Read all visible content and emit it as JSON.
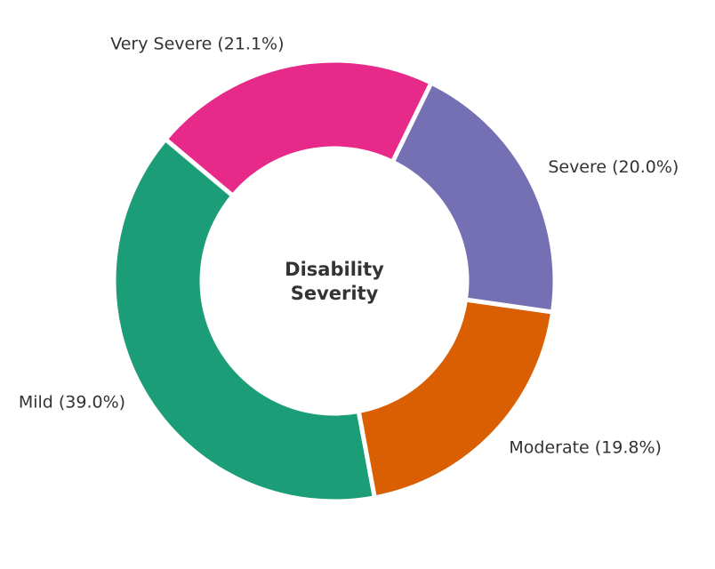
{
  "chart_data": {
    "type": "pie",
    "variant": "donut",
    "center_title": [
      "Disability",
      "Severity"
    ],
    "categories": [
      "Mild",
      "Moderate",
      "Severe",
      "Very Severe"
    ],
    "values": [
      39.0,
      19.8,
      20.0,
      21.1
    ],
    "labels": [
      "Mild (39.0%)",
      "Moderate (19.8%)",
      "Severe (20.0%)",
      "Very Severe (21.1%)"
    ],
    "colors": [
      "#1b9e77",
      "#d95f02",
      "#7570b3",
      "#e7298a"
    ],
    "start_angle_deg": 140,
    "direction": "counterclockwise",
    "legend": "none"
  }
}
